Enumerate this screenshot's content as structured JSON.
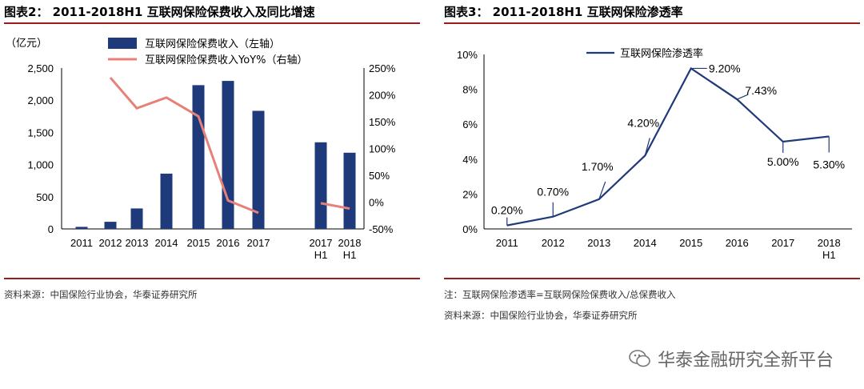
{
  "left_panel": {
    "title": "图表2： 2011-2018H1 互联网保险保费收入及同比增速",
    "source": "资料来源：中国保险行业协会，华泰证券研究所"
  },
  "right_panel": {
    "title": "图表3： 2011-2018H1 互联网保险渗透率",
    "note": "注：互联网保险渗透率=互联网保险保费收入/总保费收入",
    "source": "资料来源：中国保险行业协会，华泰证券研究所"
  },
  "watermark": {
    "text": "华泰金融研究全新平台",
    "icon": "wechat-icon"
  },
  "chart_data": [
    {
      "type": "bar",
      "ylabel": "（亿元）",
      "categories": [
        [
          "2011"
        ],
        [
          "2012"
        ],
        [
          "2013"
        ],
        [
          "2014"
        ],
        [
          "2015"
        ],
        [
          "2016"
        ],
        [
          "2017"
        ],
        [
          "2017",
          "H1"
        ],
        [
          "2018",
          "H1"
        ]
      ],
      "series": [
        {
          "name": "互联网保险保费收入（左轴）",
          "type": "bar",
          "axis": "left",
          "color": "#1f3a7a",
          "values": [
            32,
            111,
            318,
            859,
            2234,
            2300,
            1835,
            1346,
            1184
          ]
        },
        {
          "name": "互联网保险保费收入YoY%（右轴）",
          "type": "line",
          "axis": "right",
          "color": "#e8807a",
          "values": [
            null,
            232,
            175,
            195,
            160,
            3,
            -20,
            -2,
            -12
          ]
        }
      ],
      "ylim_left": [
        0,
        2500
      ],
      "yticks_left": [
        "0",
        "500",
        "1,000",
        "1,500",
        "2,000",
        "2,500"
      ],
      "ylim_right": [
        -50,
        250
      ],
      "yticks_right": [
        "-50%",
        "0%",
        "50%",
        "100%",
        "150%",
        "200%",
        "250%"
      ],
      "legend_position": "top"
    },
    {
      "type": "line",
      "categories": [
        [
          "2011"
        ],
        [
          "2012"
        ],
        [
          "2013"
        ],
        [
          "2014"
        ],
        [
          "2015"
        ],
        [
          "2016"
        ],
        [
          "2017"
        ],
        [
          "2018",
          "H1"
        ]
      ],
      "series": [
        {
          "name": "互联网保险渗透率",
          "color": "#1f3a7a",
          "values": [
            0.2,
            0.7,
            1.7,
            4.2,
            9.2,
            7.43,
            5.0,
            5.3
          ]
        }
      ],
      "data_labels": [
        "0.20%",
        "0.70%",
        "1.70%",
        "4.20%",
        "9.20%",
        "7.43%",
        "5.00%",
        "5.30%"
      ],
      "ylim": [
        0,
        10
      ],
      "yticks": [
        "0%",
        "2%",
        "4%",
        "6%",
        "8%",
        "10%"
      ],
      "legend_position": "top"
    }
  ]
}
